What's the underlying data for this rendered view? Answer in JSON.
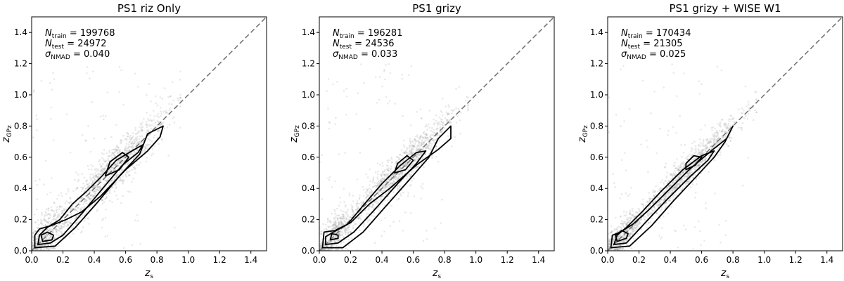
{
  "chart_data": [
    {
      "type": "scatter",
      "title": "PS1 riz Only",
      "xlabel": {
        "base": "z",
        "sub": "s"
      },
      "ylabel": {
        "base": "z",
        "sub": "GPz"
      },
      "xlim": [
        0.0,
        1.5
      ],
      "ylim": [
        0.0,
        1.5
      ],
      "xticks": [
        "0.0",
        "0.2",
        "0.4",
        "0.6",
        "0.8",
        "1.0",
        "1.2",
        "1.4"
      ],
      "yticks": [
        "0.0",
        "0.2",
        "0.4",
        "0.6",
        "0.8",
        "1.0",
        "1.2",
        "1.4"
      ],
      "reference_line": {
        "type": "one-to-one",
        "style": "dashed",
        "color": "#777777"
      },
      "annotations": [
        {
          "symbol": "N",
          "sub": "train",
          "text": " = 199768"
        },
        {
          "symbol": "N",
          "sub": "test",
          "text": " = 24972"
        },
        {
          "symbol": "σ",
          "sub": "NMAD",
          "text": " = 0.040"
        }
      ],
      "scatter_color": "#9a9a9a",
      "contours": [
        [
          [
            0.02,
            0.02
          ],
          [
            0.15,
            0.03
          ],
          [
            0.28,
            0.15
          ],
          [
            0.42,
            0.31
          ],
          [
            0.57,
            0.49
          ],
          [
            0.69,
            0.62
          ],
          [
            0.74,
            0.75
          ],
          [
            0.84,
            0.8
          ],
          [
            0.82,
            0.73
          ],
          [
            0.74,
            0.64
          ],
          [
            0.6,
            0.52
          ],
          [
            0.44,
            0.35
          ],
          [
            0.32,
            0.25
          ],
          [
            0.22,
            0.2
          ],
          [
            0.12,
            0.16
          ],
          [
            0.05,
            0.14
          ],
          [
            0.02,
            0.1
          ]
        ],
        [
          [
            0.04,
            0.04
          ],
          [
            0.12,
            0.05
          ],
          [
            0.2,
            0.1
          ],
          [
            0.33,
            0.25
          ],
          [
            0.47,
            0.42
          ],
          [
            0.58,
            0.55
          ],
          [
            0.68,
            0.63
          ],
          [
            0.71,
            0.68
          ],
          [
            0.64,
            0.64
          ],
          [
            0.54,
            0.58
          ],
          [
            0.45,
            0.48
          ],
          [
            0.35,
            0.38
          ],
          [
            0.26,
            0.3
          ],
          [
            0.18,
            0.2
          ],
          [
            0.1,
            0.15
          ],
          [
            0.05,
            0.1
          ]
        ],
        [
          [
            0.07,
            0.06
          ],
          [
            0.13,
            0.07
          ],
          [
            0.14,
            0.1
          ],
          [
            0.1,
            0.12
          ],
          [
            0.06,
            0.1
          ]
        ],
        [
          [
            0.47,
            0.48
          ],
          [
            0.56,
            0.52
          ],
          [
            0.62,
            0.6
          ],
          [
            0.58,
            0.63
          ],
          [
            0.5,
            0.57
          ]
        ]
      ]
    },
    {
      "type": "scatter",
      "title": "PS1 grizy",
      "xlabel": {
        "base": "z",
        "sub": "s"
      },
      "ylabel": {
        "base": "z",
        "sub": "GPz"
      },
      "xlim": [
        0.0,
        1.5
      ],
      "ylim": [
        0.0,
        1.5
      ],
      "xticks": [
        "0.0",
        "0.2",
        "0.4",
        "0.6",
        "0.8",
        "1.0",
        "1.2",
        "1.4"
      ],
      "yticks": [
        "0.0",
        "0.2",
        "0.4",
        "0.6",
        "0.8",
        "1.0",
        "1.2",
        "1.4"
      ],
      "reference_line": {
        "type": "one-to-one",
        "style": "dashed",
        "color": "#777777"
      },
      "annotations": [
        {
          "symbol": "N",
          "sub": "train",
          "text": " = 196281"
        },
        {
          "symbol": "N",
          "sub": "test",
          "text": " = 24536"
        },
        {
          "symbol": "σ",
          "sub": "NMAD",
          "text": " = 0.033"
        }
      ],
      "scatter_color": "#9a9a9a",
      "contours": [
        [
          [
            0.02,
            0.02
          ],
          [
            0.15,
            0.02
          ],
          [
            0.28,
            0.12
          ],
          [
            0.42,
            0.28
          ],
          [
            0.57,
            0.45
          ],
          [
            0.7,
            0.6
          ],
          [
            0.76,
            0.72
          ],
          [
            0.84,
            0.8
          ],
          [
            0.84,
            0.72
          ],
          [
            0.76,
            0.65
          ],
          [
            0.62,
            0.55
          ],
          [
            0.45,
            0.4
          ],
          [
            0.32,
            0.3
          ],
          [
            0.2,
            0.18
          ],
          [
            0.1,
            0.13
          ],
          [
            0.03,
            0.12
          ]
        ],
        [
          [
            0.04,
            0.04
          ],
          [
            0.12,
            0.05
          ],
          [
            0.22,
            0.12
          ],
          [
            0.35,
            0.26
          ],
          [
            0.5,
            0.43
          ],
          [
            0.62,
            0.56
          ],
          [
            0.68,
            0.64
          ],
          [
            0.62,
            0.63
          ],
          [
            0.52,
            0.55
          ],
          [
            0.4,
            0.43
          ],
          [
            0.28,
            0.29
          ],
          [
            0.18,
            0.17
          ],
          [
            0.09,
            0.12
          ],
          [
            0.04,
            0.09
          ]
        ],
        [
          [
            0.07,
            0.07
          ],
          [
            0.12,
            0.08
          ],
          [
            0.12,
            0.1
          ],
          [
            0.08,
            0.11
          ]
        ],
        [
          [
            0.48,
            0.5
          ],
          [
            0.55,
            0.52
          ],
          [
            0.6,
            0.58
          ],
          [
            0.56,
            0.61
          ],
          [
            0.5,
            0.56
          ]
        ]
      ]
    },
    {
      "type": "scatter",
      "title": "PS1 grizy + WISE W1",
      "xlabel": {
        "base": "z",
        "sub": "s"
      },
      "ylabel": {
        "base": "z",
        "sub": "GPz"
      },
      "xlim": [
        0.0,
        1.5
      ],
      "ylim": [
        0.0,
        1.5
      ],
      "xticks": [
        "0.0",
        "0.2",
        "0.4",
        "0.6",
        "0.8",
        "1.0",
        "1.2",
        "1.4"
      ],
      "yticks": [
        "0.0",
        "0.2",
        "0.4",
        "0.6",
        "0.8",
        "1.0",
        "1.2",
        "1.4"
      ],
      "reference_line": {
        "type": "one-to-one",
        "style": "dashed",
        "color": "#777777"
      },
      "annotations": [
        {
          "symbol": "N",
          "sub": "train",
          "text": " = 170434"
        },
        {
          "symbol": "N",
          "sub": "test",
          "text": " = 21305"
        },
        {
          "symbol": "σ",
          "sub": "NMAD",
          "text": " = 0.025"
        }
      ],
      "scatter_color": "#9a9a9a",
      "contours": [
        [
          [
            0.02,
            0.02
          ],
          [
            0.14,
            0.03
          ],
          [
            0.28,
            0.16
          ],
          [
            0.42,
            0.32
          ],
          [
            0.56,
            0.47
          ],
          [
            0.68,
            0.6
          ],
          [
            0.75,
            0.7
          ],
          [
            0.8,
            0.8
          ],
          [
            0.76,
            0.72
          ],
          [
            0.66,
            0.64
          ],
          [
            0.52,
            0.52
          ],
          [
            0.38,
            0.38
          ],
          [
            0.26,
            0.26
          ],
          [
            0.16,
            0.17
          ],
          [
            0.08,
            0.12
          ],
          [
            0.03,
            0.1
          ]
        ],
        [
          [
            0.04,
            0.04
          ],
          [
            0.12,
            0.05
          ],
          [
            0.24,
            0.18
          ],
          [
            0.38,
            0.33
          ],
          [
            0.52,
            0.47
          ],
          [
            0.64,
            0.58
          ],
          [
            0.68,
            0.64
          ],
          [
            0.6,
            0.61
          ],
          [
            0.48,
            0.52
          ],
          [
            0.34,
            0.38
          ],
          [
            0.22,
            0.25
          ],
          [
            0.12,
            0.15
          ],
          [
            0.06,
            0.1
          ]
        ],
        [
          [
            0.06,
            0.06
          ],
          [
            0.12,
            0.08
          ],
          [
            0.13,
            0.11
          ],
          [
            0.09,
            0.13
          ],
          [
            0.05,
            0.1
          ]
        ],
        [
          [
            0.5,
            0.52
          ],
          [
            0.56,
            0.55
          ],
          [
            0.6,
            0.6
          ],
          [
            0.55,
            0.61
          ],
          [
            0.5,
            0.56
          ]
        ]
      ]
    }
  ]
}
